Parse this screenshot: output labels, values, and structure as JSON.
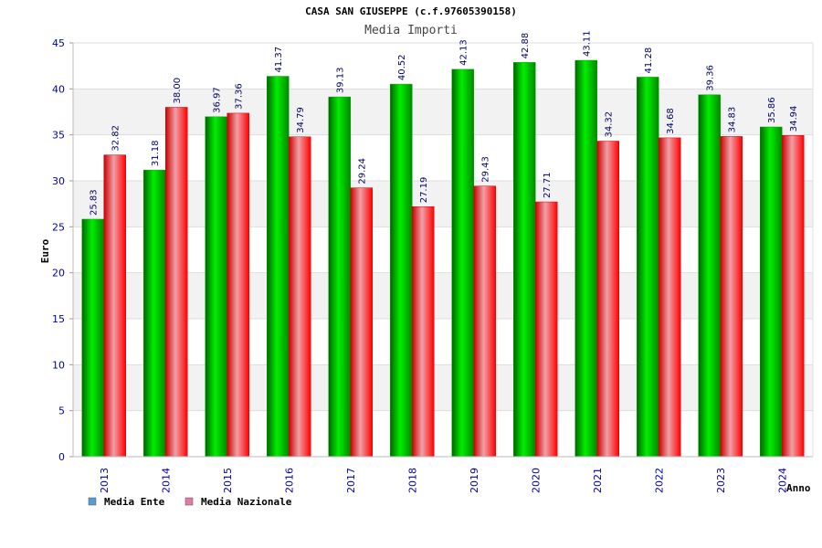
{
  "chart_data": {
    "type": "bar",
    "title": "CASA SAN GIUSEPPE (c.f.97605390158)",
    "subtitle": "Media Importi",
    "xlabel": "Anno",
    "ylabel": "Euro",
    "ylim": [
      0,
      45
    ],
    "yticks": [
      0,
      5,
      10,
      15,
      20,
      25,
      30,
      35,
      40,
      45
    ],
    "grid": true,
    "legend_position": "bottom-left",
    "categories": [
      "2013",
      "2014",
      "2015",
      "2016",
      "2017",
      "2018",
      "2019",
      "2020",
      "2021",
      "2022",
      "2023",
      "2024"
    ],
    "series": [
      {
        "name": "Media Ente",
        "color": "#00cc00",
        "legend_color": "#5b9bd5",
        "values": [
          25.83,
          31.18,
          36.97,
          41.37,
          39.13,
          40.52,
          42.13,
          42.88,
          43.11,
          41.28,
          39.36,
          35.86
        ],
        "labels": [
          "25.83",
          "31.18",
          "36.97",
          "41.37",
          "39.13",
          "40.52",
          "42.13",
          "42.88",
          "43.11",
          "41.28",
          "39.36",
          "35.86"
        ]
      },
      {
        "name": "Media Nazionale",
        "color": "#ff0000",
        "legend_color": "#e07aa6",
        "values": [
          32.82,
          38.0,
          37.36,
          34.79,
          29.24,
          27.19,
          29.43,
          27.71,
          34.32,
          34.68,
          34.83,
          34.94
        ],
        "labels": [
          "32.82",
          "38.00",
          "37.36",
          "34.79",
          "29.24",
          "27.19",
          "29.43",
          "27.71",
          "34.32",
          "34.68",
          "34.83",
          "34.94"
        ]
      }
    ]
  }
}
